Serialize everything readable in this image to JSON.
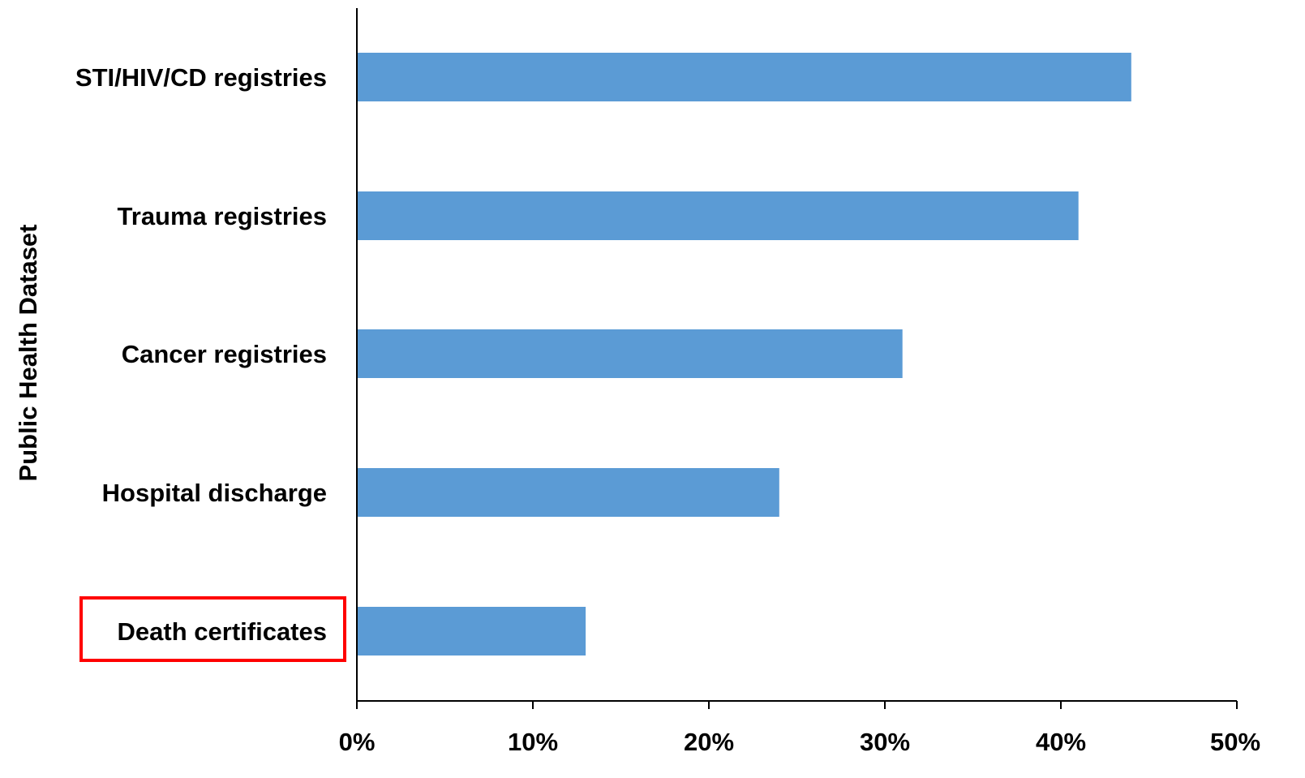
{
  "chart_data": {
    "type": "bar",
    "orientation": "horizontal",
    "title": "",
    "xlabel": "",
    "ylabel": "Public Health Dataset",
    "categories": [
      "STI/HIV/CD registries",
      "Trauma registries",
      "Cancer registries",
      "Hospital discharge",
      "Death certificates"
    ],
    "values": [
      44,
      41,
      31,
      24,
      13
    ],
    "value_unit": "%",
    "xlim": [
      0,
      50
    ],
    "xticks": [
      0,
      10,
      20,
      30,
      40,
      50
    ],
    "xtick_labels": [
      "0%",
      "10%",
      "20%",
      "30%",
      "40%",
      "50%"
    ],
    "grid": false,
    "legend": "none",
    "highlighted_category": "Death certificates",
    "bar_color": "#5b9bd5",
    "highlight_color": "#ff0000",
    "axis_color": "#000000"
  }
}
